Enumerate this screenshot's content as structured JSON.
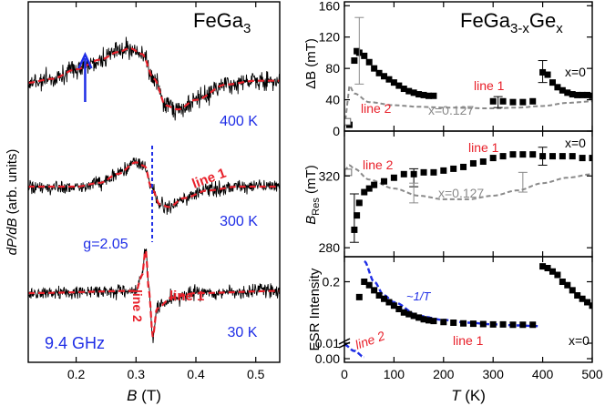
{
  "colors": {
    "trace": "#000000",
    "fit": "#e8202a",
    "annotation_blue": "#1f2ee6",
    "gray": "#8a8a8a",
    "axis": "#000000"
  },
  "chart_data": [
    {
      "type": "line",
      "panel": "left",
      "title": "FeGa3",
      "title_base": "FeGa",
      "title_sub": "3",
      "xlabel_main": "B",
      "xlabel_unit": "(T)",
      "ylabel_main": "dP/dB",
      "ylabel_unit": "(arb. units)",
      "xlim": [
        0.12,
        0.54
      ],
      "xticks": [
        0.2,
        0.3,
        0.4,
        0.5
      ],
      "xtick_labels": [
        "0.2",
        "0.3",
        "0.4",
        "0.5"
      ],
      "arrow_at_B": 0.215,
      "dashed_line_at_B": 0.327,
      "g_factor_label": "g=2.05",
      "frequency_label": "9.4 GHz",
      "traces": [
        {
          "temperature": "400 K",
          "label": "",
          "fit_points": [
            [
              0.12,
              0.1
            ],
            [
              0.16,
              0.2
            ],
            [
              0.2,
              0.45
            ],
            [
              0.24,
              0.7
            ],
            [
              0.27,
              0.9
            ],
            [
              0.29,
              1.0
            ],
            [
              0.31,
              0.85
            ],
            [
              0.33,
              0.2
            ],
            [
              0.35,
              -0.5
            ],
            [
              0.37,
              -0.6
            ],
            [
              0.4,
              -0.35
            ],
            [
              0.45,
              0.05
            ],
            [
              0.5,
              0.15
            ],
            [
              0.54,
              0.15
            ]
          ]
        },
        {
          "temperature": "300 K",
          "label": "line 1",
          "fit_points": [
            [
              0.12,
              0.0
            ],
            [
              0.2,
              0.0
            ],
            [
              0.24,
              0.15
            ],
            [
              0.27,
              0.5
            ],
            [
              0.3,
              0.95
            ],
            [
              0.315,
              0.8
            ],
            [
              0.325,
              0.0
            ],
            [
              0.34,
              -0.7
            ],
            [
              0.355,
              -0.8
            ],
            [
              0.38,
              -0.45
            ],
            [
              0.42,
              -0.15
            ],
            [
              0.47,
              0.0
            ],
            [
              0.54,
              0.0
            ]
          ]
        },
        {
          "temperature": "30 K",
          "label": "line 1",
          "label2": "line 2",
          "fit_points": [
            [
              0.12,
              0.0
            ],
            [
              0.3,
              0.05
            ],
            [
              0.31,
              0.4
            ],
            [
              0.316,
              1.0
            ],
            [
              0.322,
              0.0
            ],
            [
              0.328,
              -1.0
            ],
            [
              0.335,
              -0.35
            ],
            [
              0.36,
              -0.1
            ],
            [
              0.4,
              0.0
            ],
            [
              0.54,
              0.05
            ]
          ]
        }
      ]
    },
    {
      "type": "scatter",
      "panel": "right-top",
      "title": "FeGa3-xGex",
      "title_base": "FeGa",
      "title_sub1": "3-x",
      "title_mid": "Ge",
      "title_sub2": "x",
      "ylabel_main": "ΔB",
      "ylabel_unit": "(mT)",
      "ylim": [
        0,
        165
      ],
      "yticks": [
        0,
        40,
        80,
        120,
        160
      ],
      "ytick_labels": [
        "0",
        "40",
        "80",
        "120",
        "160"
      ],
      "xlim": [
        0,
        500
      ],
      "labels": [
        "line 1",
        "line 2",
        "x=0",
        "x=0.127"
      ],
      "series": [
        {
          "name": "x=0",
          "points": [
            [
              10,
              8
            ],
            [
              20,
              90
            ],
            [
              25,
              102
            ],
            [
              30,
              100
            ],
            [
              40,
              96
            ],
            [
              50,
              88
            ],
            [
              60,
              80
            ],
            [
              70,
              74
            ],
            [
              80,
              70
            ],
            [
              90,
              66
            ],
            [
              100,
              62
            ],
            [
              110,
              58
            ],
            [
              120,
              54
            ],
            [
              130,
              51
            ],
            [
              140,
              49
            ],
            [
              150,
              47
            ],
            [
              160,
              46
            ],
            [
              170,
              45
            ],
            [
              180,
              45
            ],
            [
              300,
              38
            ],
            [
              320,
              38
            ],
            [
              340,
              37
            ],
            [
              360,
              37
            ],
            [
              380,
              38
            ],
            [
              400,
              75
            ],
            [
              410,
              72
            ],
            [
              420,
              62
            ],
            [
              430,
              56
            ],
            [
              440,
              52
            ],
            [
              450,
              49
            ],
            [
              460,
              47
            ],
            [
              470,
              46
            ],
            [
              480,
              46
            ],
            [
              490,
              46
            ],
            [
              500,
              45
            ]
          ]
        },
        {
          "name": "x=0.127",
          "curve": [
            [
              0,
              5
            ],
            [
              5,
              30
            ],
            [
              10,
              58
            ],
            [
              20,
              48
            ],
            [
              50,
              37
            ],
            [
              100,
              33
            ],
            [
              150,
              31
            ],
            [
              200,
              30
            ],
            [
              300,
              29
            ],
            [
              350,
              30
            ],
            [
              400,
              32
            ],
            [
              450,
              36
            ],
            [
              500,
              38
            ]
          ]
        }
      ]
    },
    {
      "type": "scatter",
      "panel": "right-middle",
      "ylabel_main": "B",
      "ylabel_sub": "Res",
      "ylabel_unit": "(mT)",
      "ylim": [
        275,
        345
      ],
      "yticks": [
        280,
        320
      ],
      "ytick_labels": [
        "280",
        "320"
      ],
      "xlim": [
        0,
        500
      ],
      "labels": [
        "line 1",
        "line 2",
        "x=0",
        "x=0.127"
      ],
      "series": [
        {
          "name": "x=0",
          "points": [
            [
              20,
              290
            ],
            [
              25,
              298
            ],
            [
              30,
              305
            ],
            [
              40,
              311
            ],
            [
              50,
              313
            ],
            [
              60,
              315
            ],
            [
              80,
              317
            ],
            [
              100,
              319
            ],
            [
              120,
              321
            ],
            [
              140,
              321
            ],
            [
              160,
              322
            ],
            [
              180,
              322
            ],
            [
              200,
              323
            ],
            [
              220,
              324
            ],
            [
              240,
              325
            ],
            [
              260,
              327
            ],
            [
              280,
              328
            ],
            [
              300,
              330
            ],
            [
              320,
              331
            ],
            [
              340,
              332
            ],
            [
              360,
              332
            ],
            [
              380,
              332
            ],
            [
              400,
              331
            ],
            [
              420,
              331
            ],
            [
              440,
              331
            ],
            [
              460,
              331
            ],
            [
              480,
              330
            ],
            [
              500,
              330
            ]
          ]
        },
        {
          "name": "x=0.127",
          "curve": [
            [
              0,
              323
            ],
            [
              10,
              326
            ],
            [
              20,
              324
            ],
            [
              50,
              318
            ],
            [
              100,
              313
            ],
            [
              150,
              309
            ],
            [
              200,
              307
            ],
            [
              250,
              307
            ],
            [
              300,
              309
            ],
            [
              350,
              312
            ],
            [
              400,
              316
            ],
            [
              450,
              319
            ],
            [
              500,
              321
            ]
          ]
        }
      ]
    },
    {
      "type": "scatter",
      "panel": "right-bottom",
      "ylabel": "ESR Intensity",
      "xlabel_main": "T",
      "xlabel_unit": "(K)",
      "xlim": [
        0,
        500
      ],
      "xticks": [
        0,
        100,
        200,
        300,
        400,
        500
      ],
      "xtick_labels": [
        "0",
        "100",
        "200",
        "300",
        "400",
        "500"
      ],
      "yticks": [
        0.0,
        0.01,
        0.2
      ],
      "ytick_labels": [
        "0.00",
        "0.01",
        "0.2"
      ],
      "labels": [
        "~1/T",
        "line 1",
        "line 2",
        "x=0"
      ],
      "series": [
        {
          "name": "x=0",
          "points": [
            [
              30,
              0.155
            ],
            [
              40,
              0.2
            ],
            [
              50,
              0.19
            ],
            [
              60,
              0.175
            ],
            [
              70,
              0.16
            ],
            [
              80,
              0.15
            ],
            [
              90,
              0.14
            ],
            [
              100,
              0.13
            ],
            [
              110,
              0.12
            ],
            [
              120,
              0.11
            ],
            [
              130,
              0.105
            ],
            [
              140,
              0.1
            ],
            [
              150,
              0.095
            ],
            [
              160,
              0.09
            ],
            [
              170,
              0.087
            ],
            [
              180,
              0.085
            ],
            [
              200,
              0.082
            ],
            [
              220,
              0.08
            ],
            [
              240,
              0.078
            ],
            [
              260,
              0.077
            ],
            [
              280,
              0.076
            ],
            [
              300,
              0.075
            ],
            [
              320,
              0.075
            ],
            [
              340,
              0.074
            ],
            [
              360,
              0.074
            ],
            [
              380,
              0.074
            ],
            [
              400,
              0.245
            ],
            [
              410,
              0.24
            ],
            [
              420,
              0.23
            ],
            [
              430,
              0.22
            ],
            [
              440,
              0.2
            ],
            [
              450,
              0.19
            ],
            [
              460,
              0.175
            ],
            [
              470,
              0.16
            ],
            [
              480,
              0.15
            ],
            [
              490,
              0.14
            ],
            [
              500,
              0.13
            ]
          ]
        },
        {
          "name": "~1/T",
          "curve": [
            [
              40,
              0.26
            ],
            [
              60,
              0.2
            ],
            [
              80,
              0.16
            ],
            [
              100,
              0.14
            ],
            [
              150,
              0.1
            ],
            [
              200,
              0.088
            ],
            [
              250,
              0.08
            ],
            [
              300,
              0.075
            ],
            [
              350,
              0.072
            ],
            [
              390,
              0.07
            ]
          ]
        }
      ]
    }
  ]
}
